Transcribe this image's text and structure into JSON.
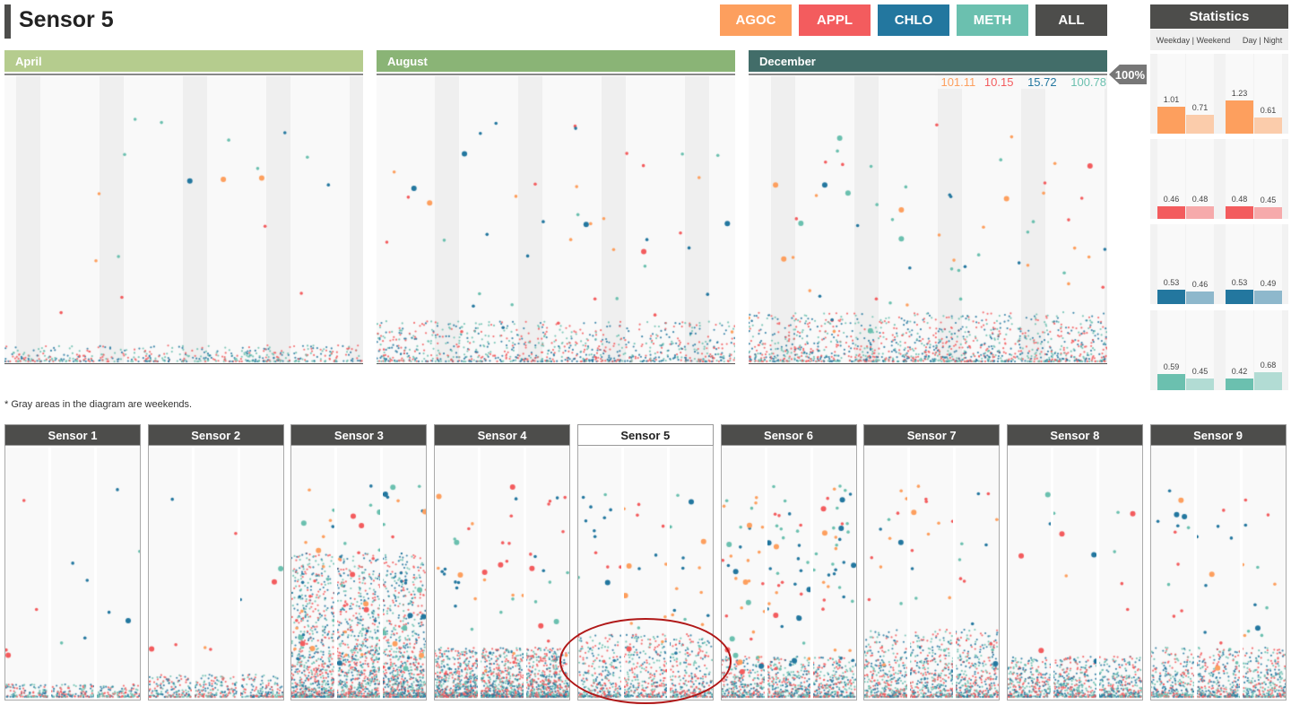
{
  "title": "Sensor 5",
  "colors": {
    "AGOC": "#fd9f5e",
    "APPL": "#f35c5e",
    "CHLO": "#23779f",
    "METH": "#6bc0af",
    "ALL": "#4d4d4b"
  },
  "filters": [
    {
      "label": "AGOC",
      "color": "#fd9f5e"
    },
    {
      "label": "APPL",
      "color": "#f35c5e"
    },
    {
      "label": "CHLO",
      "color": "#23779f"
    },
    {
      "label": "METH",
      "color": "#6bc0af"
    },
    {
      "label": "ALL",
      "color": "#4d4d4b"
    }
  ],
  "months": [
    {
      "label": "April",
      "color": "#b5cc8e"
    },
    {
      "label": "August",
      "color": "#8ab476"
    },
    {
      "label": "December",
      "color": "#426d69"
    }
  ],
  "max_values": [
    "101.11",
    "10.15",
    "15.72",
    "100.78"
  ],
  "zoom_label": "100%",
  "statistics": {
    "title": "Statistics",
    "col1": "Weekday | Weekend",
    "col2": "Day | Night",
    "groups": [
      {
        "chemical": "AGOC",
        "values": [
          1.01,
          0.71,
          1.23,
          0.61
        ]
      },
      {
        "chemical": "APPL",
        "values": [
          0.46,
          0.48,
          0.48,
          0.45
        ]
      },
      {
        "chemical": "CHLO",
        "values": [
          0.53,
          0.46,
          0.53,
          0.49
        ]
      },
      {
        "chemical": "METH",
        "values": [
          0.59,
          0.45,
          0.42,
          0.68
        ]
      }
    ]
  },
  "note": "* Gray areas in the diagram are weekends.",
  "sensors": [
    "Sensor 1",
    "Sensor 2",
    "Sensor 3",
    "Sensor 4",
    "Sensor 5",
    "Sensor 6",
    "Sensor 7",
    "Sensor 8",
    "Sensor 9"
  ],
  "selected_sensor": "Sensor 5"
}
